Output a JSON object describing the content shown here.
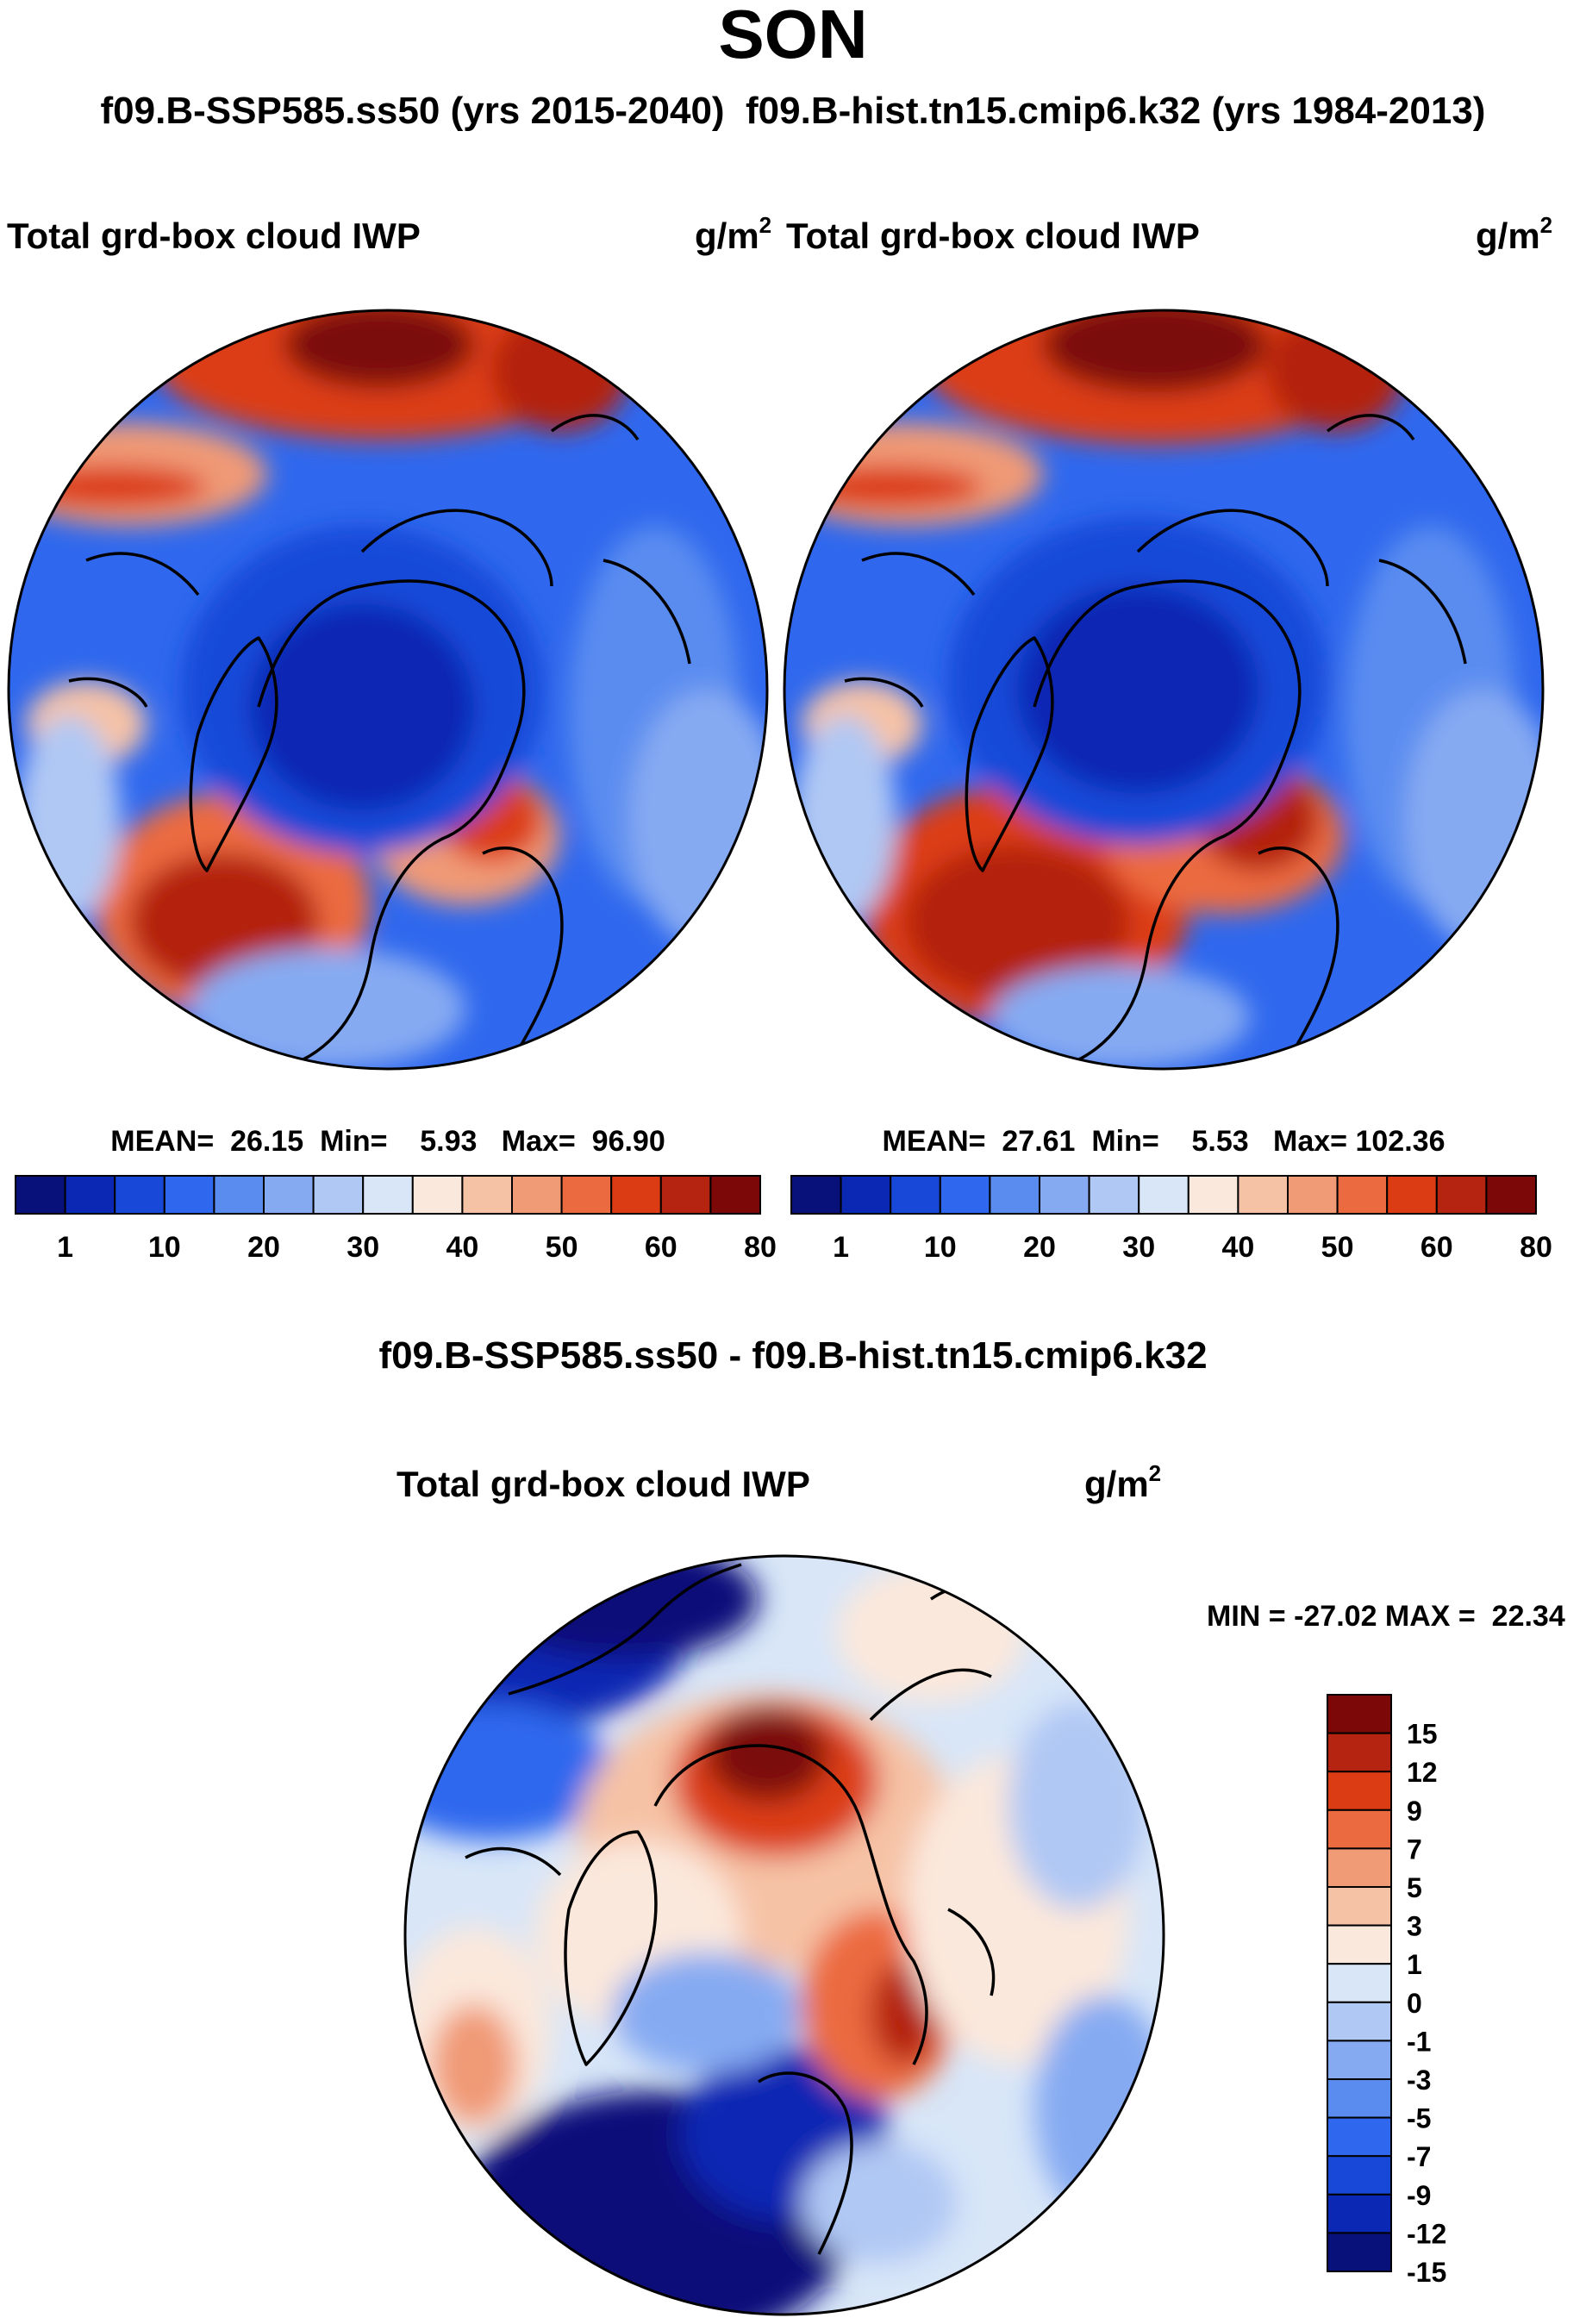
{
  "figure": {
    "title": "SON",
    "subtitle": "f09.B-SSP585.ss50 (yrs 2015-2040)  f09.B-hist.tn15.cmip6.k32 (yrs 1984-2013)",
    "diff_title": "f09.B-SSP585.ss50 - f09.B-hist.tn15.cmip6.k32"
  },
  "panels": {
    "left": {
      "variable": "Total grd-box cloud IWP",
      "units_base": "g/m",
      "units_exp": "2",
      "stats": "MEAN=  26.15  Min=    5.93   Max=  96.90"
    },
    "right": {
      "variable": "Total grd-box cloud IWP",
      "units_base": "g/m",
      "units_exp": "2",
      "stats": "MEAN=  27.61  Min=    5.53   Max= 102.36"
    },
    "diff": {
      "variable": "Total grd-box cloud IWP",
      "units_base": "g/m",
      "units_exp": "2",
      "stats": "MIN = -27.02 MAX =  22.34"
    }
  },
  "colors": {
    "abs_levels": [
      "#08107a",
      "#0a28b4",
      "#1848d8",
      "#2f68ee",
      "#5a8cf0",
      "#86aaf2",
      "#b0c8f4",
      "#d8e6f8",
      "#fbe8dc",
      "#f6c2a6",
      "#f09a76",
      "#ec6a40",
      "#dc3c14",
      "#b42410",
      "#7c0808"
    ],
    "diff_levels": [
      "#08107a",
      "#0a28b4",
      "#1848d8",
      "#2f68ee",
      "#5a8cf0",
      "#86aaf2",
      "#b0c8f4",
      "#d8e6f8",
      "#fbe8dc",
      "#f6c2a6",
      "#f09a76",
      "#ec6a40",
      "#dc3c14",
      "#b42410",
      "#7c0808"
    ]
  },
  "chart_data": [
    {
      "type": "heatmap",
      "title": "Total grd-box cloud IWP",
      "projection": "polar stereographic (north pole)",
      "units": "g/m2",
      "mean": 26.15,
      "min": 5.93,
      "max": 96.9,
      "colorbar_ticks": [
        "1",
        "10",
        "20",
        "30",
        "40",
        "50",
        "60",
        "80"
      ],
      "colorbar_orientation": "horizontal"
    },
    {
      "type": "heatmap",
      "title": "Total grd-box cloud IWP",
      "projection": "polar stereographic (north pole)",
      "units": "g/m2",
      "mean": 27.61,
      "min": 5.53,
      "max": 102.36,
      "colorbar_ticks": [
        "1",
        "10",
        "20",
        "30",
        "40",
        "50",
        "60",
        "80"
      ],
      "colorbar_orientation": "horizontal"
    },
    {
      "type": "heatmap",
      "title": "Total grd-box cloud IWP",
      "projection": "polar stereographic (north pole)",
      "units": "g/m2",
      "min": -27.02,
      "max": 22.34,
      "colorbar_ticks": [
        "15",
        "12",
        "9",
        "7",
        "5",
        "3",
        "1",
        "0",
        "-1",
        "-3",
        "-5",
        "-7",
        "-9",
        "-12",
        "-15"
      ],
      "colorbar_orientation": "vertical"
    }
  ]
}
